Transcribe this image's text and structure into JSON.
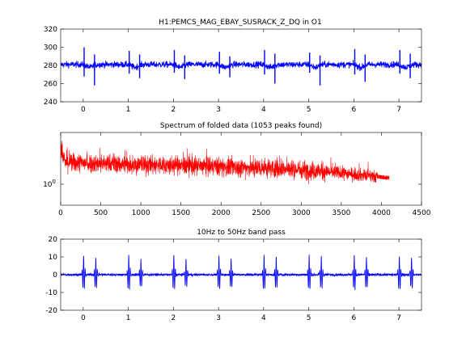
{
  "chart_data": [
    {
      "type": "line",
      "title": "H1:PEMCS_MAG_EBAY_SUSRACK_Z_DQ  in O1",
      "xlabel": "",
      "ylabel": "",
      "xlim": [
        -0.5,
        7.5
      ],
      "ylim": [
        240,
        320
      ],
      "xticks": [
        "0",
        "1",
        "2",
        "3",
        "4",
        "5",
        "6",
        "7"
      ],
      "yticks": [
        "240",
        "260",
        "280",
        "300",
        "320"
      ],
      "series": [
        {
          "color": "#0000ff",
          "baseline": 281,
          "noise_amplitude": 4,
          "spike_times": [
            0.02,
            0.25,
            1.02,
            1.25,
            2.02,
            2.25,
            3.02,
            3.25,
            4.02,
            4.25,
            5.02,
            5.25,
            6.02,
            6.25,
            7.02,
            7.25
          ],
          "spike_max": [
            300,
            292,
            296,
            292,
            297,
            291,
            295,
            290,
            297,
            293,
            294,
            291,
            298,
            292,
            297,
            293
          ],
          "spike_min": [
            268,
            258,
            271,
            266,
            272,
            265,
            271,
            267,
            270,
            260,
            272,
            258,
            270,
            262,
            271,
            266
          ]
        }
      ]
    },
    {
      "type": "line",
      "title": "Spectrum of folded data (1053 peaks found)",
      "xlabel": "",
      "ylabel": "",
      "xlim": [
        0,
        4500
      ],
      "yscale": "log",
      "xticks": [
        "0",
        "500",
        "1000",
        "1500",
        "2000",
        "2500",
        "3000",
        "3500",
        "4000",
        "4500"
      ],
      "yticks": [
        "10^0"
      ],
      "series": [
        {
          "color": "#ff0000",
          "x_start": 0,
          "x_end": 4096,
          "peaks_found": 1053
        }
      ]
    },
    {
      "type": "line",
      "title": "10Hz to 50Hz band pass",
      "xlabel": "",
      "ylabel": "",
      "xlim": [
        -0.5,
        7.5
      ],
      "ylim": [
        -20,
        20
      ],
      "xticks": [
        "0",
        "1",
        "2",
        "3",
        "4",
        "5",
        "6",
        "7"
      ],
      "yticks": [
        "-20",
        "-10",
        "0",
        "10",
        "20"
      ],
      "series": [
        {
          "color": "#0000ff",
          "baseline": 0,
          "spike_times": [
            0.0,
            0.27,
            1.0,
            1.27,
            2.0,
            2.27,
            3.0,
            3.27,
            4.0,
            4.27,
            5.0,
            5.27,
            6.0,
            6.27,
            7.0,
            7.27
          ],
          "spike_amplitude": [
            11,
            10,
            11,
            9,
            11,
            9,
            11,
            9,
            11,
            10,
            11,
            10,
            11,
            10,
            11,
            10
          ]
        }
      ]
    }
  ]
}
